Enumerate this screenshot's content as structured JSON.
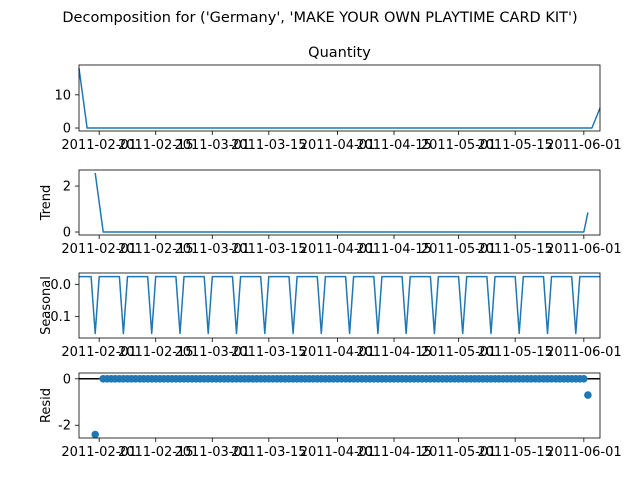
{
  "chart_data": {
    "type": "line",
    "title": "Decomposition for ('Germany', 'MAKE YOUR OWN PLAYTIME CARD KIT')",
    "x_start": "2011-01-27",
    "x_end": "2011-06-05",
    "x_tick_labels": [
      "2011-02-01",
      "2011-02-15",
      "2011-03-01",
      "2011-03-15",
      "2011-04-01",
      "2011-04-15",
      "2011-05-01",
      "2011-05-15",
      "2011-06-01"
    ],
    "color": "#1f77b4",
    "panels": [
      {
        "id": "observed",
        "title": "Quantity",
        "ylabel": "",
        "kind": "line",
        "ylim": [
          -0.9,
          19
        ],
        "yticks": [
          0,
          10
        ],
        "points": [
          [
            "2011-01-27",
            18
          ],
          [
            "2011-01-29",
            0
          ],
          [
            "2011-06-03",
            0
          ],
          [
            "2011-06-05",
            6
          ]
        ]
      },
      {
        "id": "trend",
        "title": "",
        "ylabel": "Trend",
        "kind": "line",
        "ylim": [
          -0.13,
          2.7
        ],
        "yticks": [
          0,
          2
        ],
        "points": [
          [
            "2011-01-31",
            2.57
          ],
          [
            "2011-02-02",
            0
          ],
          [
            "2011-06-01",
            0
          ],
          [
            "2011-06-02",
            0.85
          ]
        ]
      },
      {
        "id": "seasonal",
        "title": "",
        "ylabel": "Seasonal",
        "kind": "seasonal",
        "ylim": [
          -0.166,
          0.035
        ],
        "yticks": [
          0.0,
          -0.1
        ],
        "high": 0.024,
        "low": -0.152,
        "period_days": 7,
        "low_day_offset": 4
      },
      {
        "id": "resid",
        "title": "",
        "ylabel": "Resid",
        "kind": "scatter",
        "ylim": [
          -2.55,
          0.25
        ],
        "yticks": [
          0,
          -2
        ],
        "baseline": 0,
        "outliers": [
          [
            "2011-01-31",
            -2.4
          ],
          [
            "2011-06-02",
            -0.7
          ]
        ],
        "dots_start": "2011-02-02",
        "dots_end": "2011-06-01",
        "dots_value": 0
      }
    ]
  }
}
